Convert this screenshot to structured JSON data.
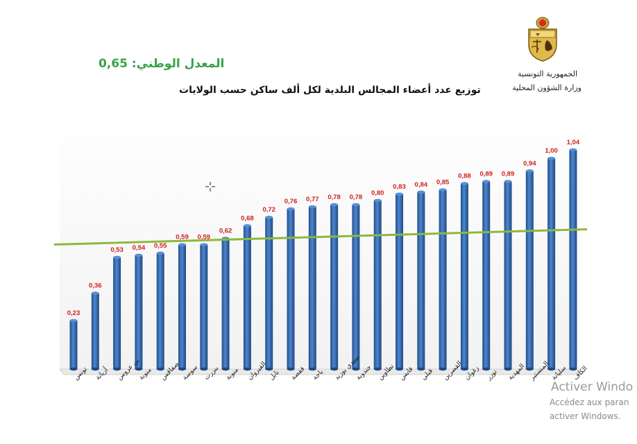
{
  "header": {
    "org_line1": "الجمهورية التونسية",
    "org_line2": "وزارة الشؤون المحلية",
    "national_average": "المعدل الوطني: 0,65",
    "title": "توزيع عدد أعضاء المجالس البلدية لكل ألف ساكن حسب الولايات"
  },
  "watermark": {
    "line1": "Activer Windo",
    "line2": "Accédez aux paran",
    "line3": "activer Windows."
  },
  "colors": {
    "bar": "#2f63a8",
    "value_label": "#d21e1e",
    "average_line": "#8db83a",
    "national_average_text": "#3aa24a"
  },
  "chart_data": {
    "type": "bar",
    "categories": [
      "تونس",
      "أريانة",
      "بن عروس",
      "منوبة",
      "صفاقس",
      "سوسة",
      "بنزرت",
      "منوبة",
      "القيروان",
      "نابل",
      "قفصة",
      "باجة",
      "سيدي بوزيد",
      "جندوبة",
      "تطاوين",
      "قابس",
      "قبلي",
      "القصرين",
      "زغوان",
      "توزر",
      "المهدية",
      "المنستير",
      "سليانة",
      "الكاف"
    ],
    "values": [
      0.23,
      0.36,
      0.53,
      0.54,
      0.55,
      0.59,
      0.59,
      0.62,
      0.68,
      0.72,
      0.76,
      0.77,
      0.78,
      0.78,
      0.8,
      0.83,
      0.84,
      0.85,
      0.88,
      0.89,
      0.89,
      0.94,
      1.0,
      1.04
    ],
    "value_labels": [
      "0,23",
      "0,36",
      "0,53",
      "0,54",
      "0,55",
      "0,59",
      "0,59",
      "0,62",
      "0,68",
      "0,72",
      "0,76",
      "0,77",
      "0,78",
      "0,78",
      "0,80",
      "0,83",
      "0,84",
      "0,85",
      "0,88",
      "0,89",
      "0,89",
      "0,94",
      "1,00",
      "1,04"
    ],
    "national_average": 0.65,
    "ylim": [
      0,
      1.04
    ],
    "grid": false,
    "legend": "none"
  }
}
